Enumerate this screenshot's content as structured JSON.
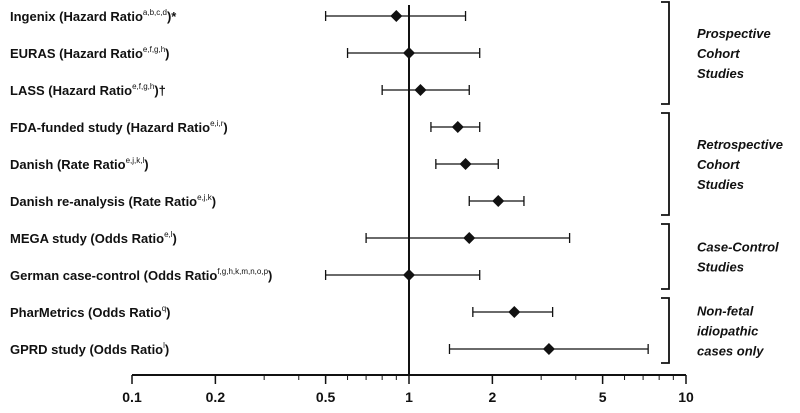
{
  "chart_data": {
    "type": "forest",
    "x_scale": "log",
    "xlim": [
      0.1,
      10
    ],
    "reference_line": 1,
    "x_ticks": [
      {
        "value": 0.1,
        "label": "0.1"
      },
      {
        "value": 0.2,
        "label": "0.2"
      },
      {
        "value": 0.5,
        "label": "0.5"
      },
      {
        "value": 1,
        "label": "1"
      },
      {
        "value": 2,
        "label": "2"
      },
      {
        "value": 5,
        "label": "5"
      },
      {
        "value": 10,
        "label": "10"
      }
    ],
    "studies": [
      {
        "name": "Ingenix",
        "measure": "(Hazard Ratio",
        "sup": "a,b,c,d",
        "suffix": ")*",
        "estimate": 0.9,
        "lower": 0.5,
        "upper": 1.6
      },
      {
        "name": "EURAS",
        "measure": "(Hazard Ratio",
        "sup": "e,f,g,h",
        "suffix": ")",
        "estimate": 1.0,
        "lower": 0.6,
        "upper": 1.8
      },
      {
        "name": "LASS",
        "measure": "(Hazard Ratio",
        "sup": "e,f,g,h",
        "suffix": ")†",
        "estimate": 1.1,
        "lower": 0.8,
        "upper": 1.65
      },
      {
        "name": "FDA-funded study",
        "measure": "(Hazard Ratio",
        "sup": "e,i,r",
        "suffix": ")",
        "estimate": 1.5,
        "lower": 1.2,
        "upper": 1.8
      },
      {
        "name": "Danish",
        "measure": "(Rate Ratio",
        "sup": "e,j,k,l",
        "suffix": ")",
        "estimate": 1.6,
        "lower": 1.25,
        "upper": 2.1
      },
      {
        "name": "Danish re-analysis",
        "measure": "(Rate Ratio",
        "sup": "e,j,k",
        "suffix": ")",
        "estimate": 2.1,
        "lower": 1.65,
        "upper": 2.6
      },
      {
        "name": "MEGA study",
        "measure": "(Odds Ratio",
        "sup": "e,l",
        "suffix": ")",
        "estimate": 1.65,
        "lower": 0.7,
        "upper": 3.8
      },
      {
        "name": "German case-control",
        "measure": "(Odds Ratio",
        "sup": "f,g,h,k,m,n,o,p",
        "suffix": ")",
        "estimate": 1.0,
        "lower": 0.5,
        "upper": 1.8
      },
      {
        "name": "PharMetrics",
        "measure": "(Odds Ratio",
        "sup": "q",
        "suffix": ")",
        "estimate": 2.4,
        "lower": 1.7,
        "upper": 3.3
      },
      {
        "name": "GPRD study",
        "measure": "(Odds Ratio",
        "sup": "l",
        "suffix": ")",
        "estimate": 3.2,
        "lower": 1.4,
        "upper": 7.3
      }
    ],
    "groups": [
      {
        "lines": [
          "Prospective",
          "Cohort",
          "Studies"
        ],
        "first": 0,
        "last": 2
      },
      {
        "lines": [
          "Retrospective",
          "Cohort",
          "Studies"
        ],
        "first": 3,
        "last": 5
      },
      {
        "lines": [
          "Case-Control",
          "Studies"
        ],
        "first": 6,
        "last": 7
      },
      {
        "lines": [
          "Non-fetal",
          "idiopathic",
          "cases only"
        ],
        "first": 8,
        "last": 9
      }
    ]
  }
}
